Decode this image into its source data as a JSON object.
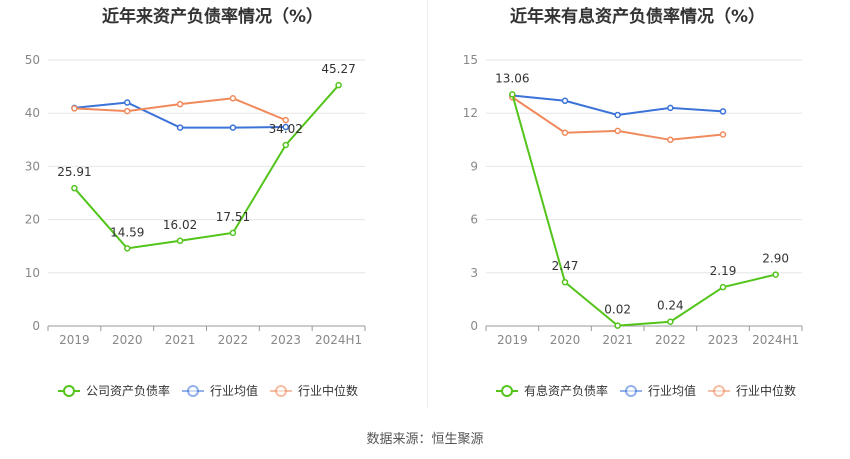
{
  "source_text": "数据来源：恒生聚源",
  "chart_data": [
    {
      "type": "line",
      "title": "近年来资产负债率情况（%）",
      "categories": [
        "2019",
        "2020",
        "2021",
        "2022",
        "2023",
        "2024H1"
      ],
      "ylim": [
        0,
        50
      ],
      "yticks": [
        "0",
        "10",
        "20",
        "30",
        "40",
        "50"
      ],
      "grid": true,
      "legend_position": "bottom",
      "series": [
        {
          "name": "公司资产负债率",
          "color": "#52c41a",
          "values": [
            25.91,
            14.59,
            16.02,
            17.51,
            34.02,
            45.27
          ],
          "labels": [
            "25.91",
            "14.59",
            "16.02",
            "17.51",
            "34.02",
            "45.27"
          ]
        },
        {
          "name": "行业均值",
          "color": "#3b73d9",
          "values": [
            41.0,
            42.0,
            37.3,
            37.3,
            37.4,
            null
          ]
        },
        {
          "name": "行业中位数",
          "color": "#f08a5d",
          "values": [
            40.9,
            40.4,
            41.7,
            42.8,
            38.7,
            null
          ]
        }
      ]
    },
    {
      "type": "line",
      "title": "近年来有息资产负债率情况（%）",
      "categories": [
        "2019",
        "2020",
        "2021",
        "2022",
        "2023",
        "2024H1"
      ],
      "ylim": [
        0,
        15
      ],
      "yticks": [
        "0",
        "3",
        "6",
        "9",
        "12",
        "15"
      ],
      "grid": true,
      "legend_position": "bottom",
      "series": [
        {
          "name": "有息资产负债率",
          "color": "#52c41a",
          "values": [
            13.06,
            2.47,
            0.02,
            0.24,
            2.19,
            2.9
          ],
          "labels": [
            "13.06",
            "2.47",
            "0.02",
            "0.24",
            "2.19",
            "2.90"
          ]
        },
        {
          "name": "行业均值",
          "color": "#3b73d9",
          "values": [
            13.0,
            12.7,
            11.9,
            12.3,
            12.1,
            null
          ]
        },
        {
          "name": "行业中位数",
          "color": "#f08a5d",
          "values": [
            12.9,
            10.9,
            11.0,
            10.5,
            10.8,
            null
          ]
        }
      ]
    }
  ]
}
